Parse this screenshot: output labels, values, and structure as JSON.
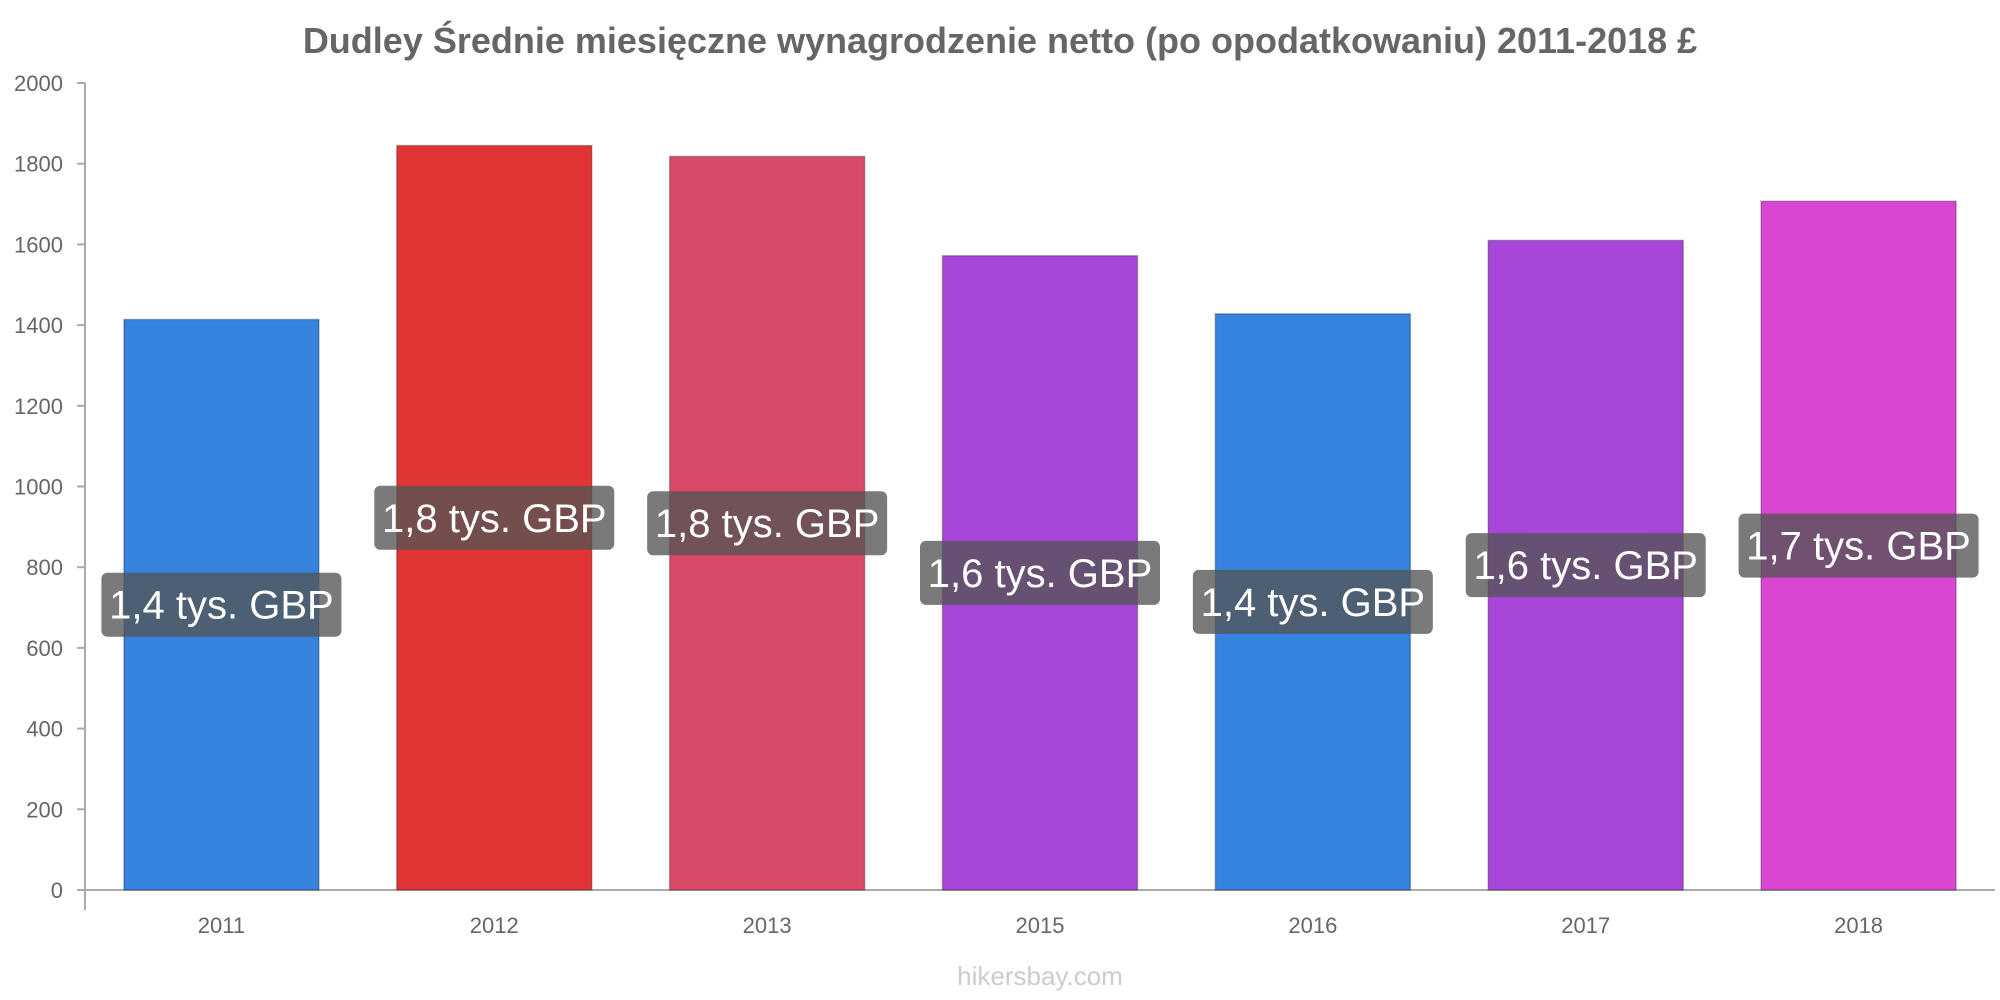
{
  "chart_data": {
    "type": "bar",
    "title": "Dudley Średnie miesięczne wynagrodzenie netto (po opodatkowaniu) 2011-2018 £",
    "categories": [
      "2011",
      "2012",
      "2013",
      "2015",
      "2016",
      "2017",
      "2018"
    ],
    "values": [
      1414,
      1845,
      1818,
      1572,
      1428,
      1610,
      1707
    ],
    "data_labels": [
      "1,4 tys. GBP",
      "1,8 tys. GBP",
      "1,8 tys. GBP",
      "1,6 tys. GBP",
      "1,4 tys. GBP",
      "1,6 tys. GBP",
      "1,7 tys. GBP"
    ],
    "bar_colors": [
      "#3583de",
      "#e13434",
      "#d94a68",
      "#a846d9",
      "#3583de",
      "#a846d9",
      "#d747d2"
    ],
    "ylim": [
      0,
      2000
    ],
    "yticks": [
      0,
      200,
      400,
      600,
      800,
      1000,
      1200,
      1400,
      1600,
      1800,
      2000
    ],
    "xlabel": "",
    "ylabel": "",
    "grid": false,
    "label_box_color": "#555555"
  },
  "watermark": "hikersbay.com"
}
